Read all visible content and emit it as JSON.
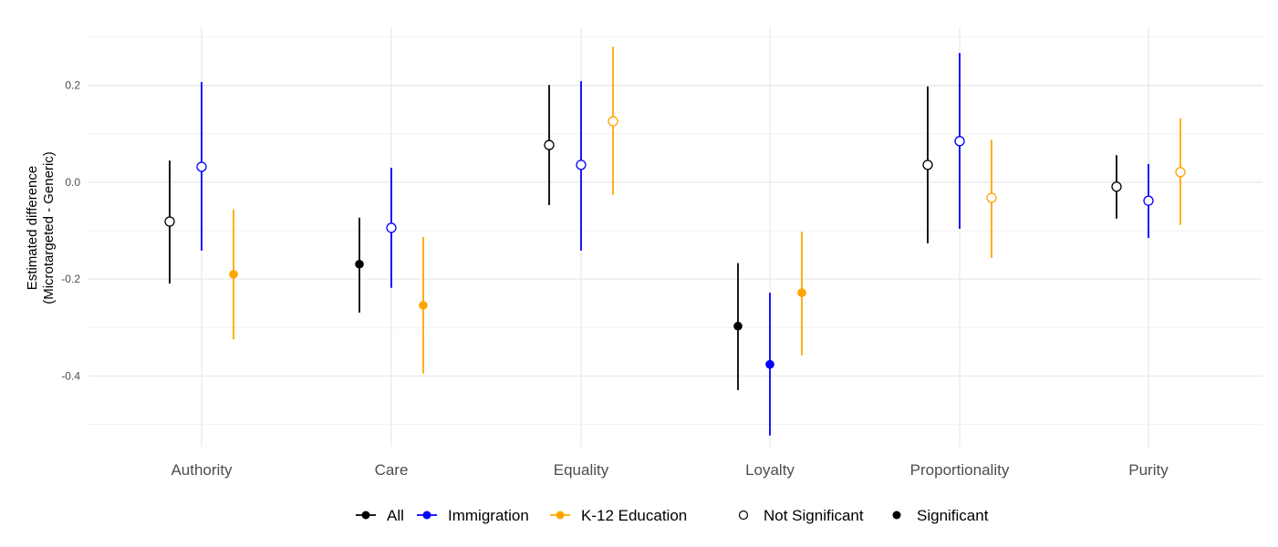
{
  "chart_data": {
    "type": "scatter",
    "subtype": "point-range",
    "title": "",
    "xlabel": "",
    "ylabel": [
      "Estimated difference",
      "(Microtargeted - Generic)"
    ],
    "ylim": [
      -0.546,
      0.32
    ],
    "yticks": [
      -0.4,
      -0.2,
      0.0,
      0.2
    ],
    "ytick_labels": [
      "-0.4",
      "-0.2",
      "0.0",
      "0.2"
    ],
    "grid": true,
    "legend_position": "bottom",
    "categories": [
      "Authority",
      "Care",
      "Equality",
      "Loyalty",
      "Proportionality",
      "Purity"
    ],
    "series": [
      {
        "name": "All",
        "color": "#000000",
        "estimate": [
          -0.081,
          -0.169,
          0.077,
          -0.297,
          0.036,
          -0.009
        ],
        "lower": [
          -0.209,
          -0.269,
          -0.047,
          -0.429,
          -0.126,
          -0.075
        ],
        "upper": [
          0.045,
          -0.073,
          0.201,
          -0.167,
          0.198,
          0.056
        ],
        "significant": [
          false,
          true,
          false,
          true,
          false,
          false
        ]
      },
      {
        "name": "Immigration",
        "color": "#0000ff",
        "estimate": [
          0.032,
          -0.094,
          0.036,
          -0.376,
          0.085,
          -0.038
        ],
        "lower": [
          -0.141,
          -0.218,
          -0.141,
          -0.523,
          -0.096,
          -0.115
        ],
        "upper": [
          0.207,
          0.03,
          0.209,
          -0.228,
          0.267,
          0.038
        ],
        "significant": [
          false,
          false,
          false,
          true,
          false,
          false
        ]
      },
      {
        "name": "K-12 Education",
        "color": "#ffa500",
        "estimate": [
          -0.19,
          -0.254,
          0.126,
          -0.228,
          -0.032,
          0.021
        ],
        "lower": [
          -0.324,
          -0.395,
          -0.026,
          -0.357,
          -0.156,
          -0.088
        ],
        "upper": [
          -0.056,
          -0.113,
          0.28,
          -0.102,
          0.088,
          0.132
        ],
        "significant": [
          true,
          true,
          false,
          true,
          false,
          false
        ]
      }
    ],
    "shape_legend": [
      "Not Significant",
      "Significant"
    ]
  }
}
